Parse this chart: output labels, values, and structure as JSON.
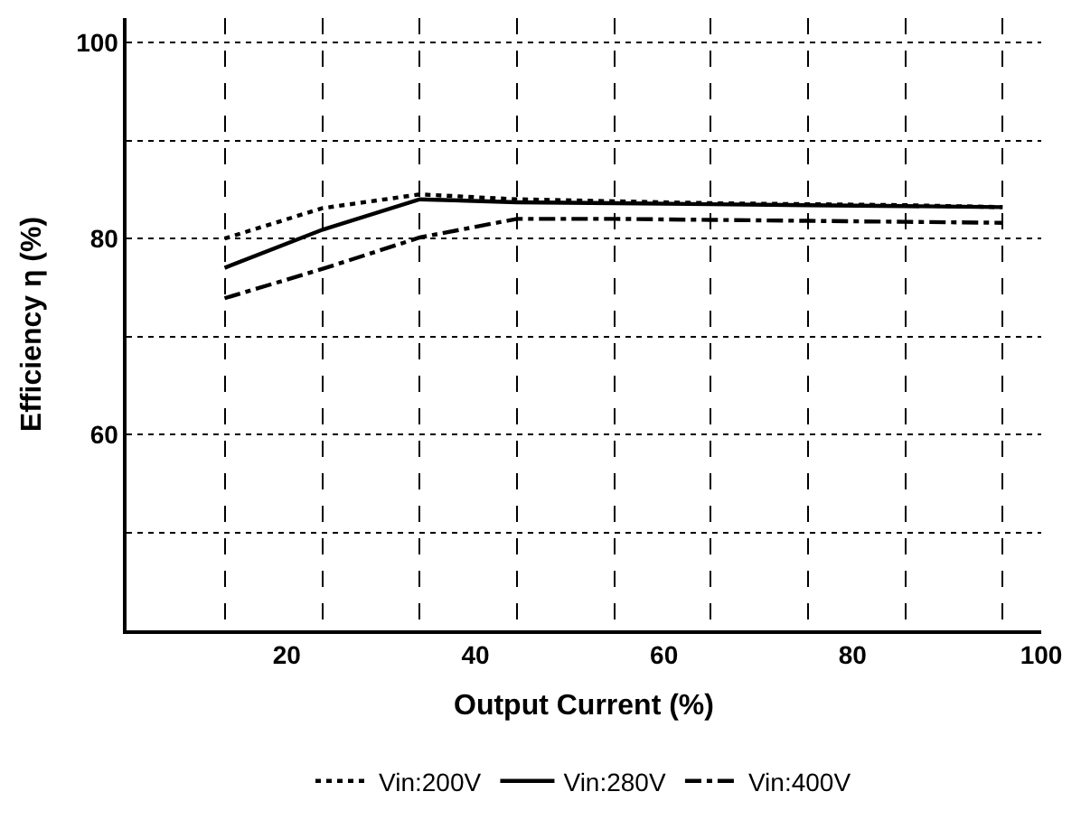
{
  "chart_data": {
    "type": "line",
    "xlabel": "Output Current (%)",
    "ylabel": "Efficiency η (%)",
    "x": [
      13.4,
      23.8,
      34.1,
      44.4,
      54.8,
      64.9,
      75.3,
      85.6,
      95.9
    ],
    "series": [
      {
        "name": "Vin:200V",
        "color": "#000000",
        "line_style": "dotted",
        "values": [
          80.0,
          83.1,
          84.5,
          84.0,
          83.8,
          83.6,
          83.5,
          83.4,
          83.2
        ]
      },
      {
        "name": "Vin:280V",
        "color": "#000000",
        "line_style": "solid",
        "values": [
          77.0,
          80.9,
          84.0,
          83.7,
          83.6,
          83.5,
          83.4,
          83.3,
          83.2
        ]
      },
      {
        "name": "Vin:400V",
        "color": "#000000",
        "line_style": "dashdot",
        "values": [
          73.9,
          76.9,
          80.1,
          82.0,
          82.0,
          81.9,
          81.8,
          81.7,
          81.6
        ]
      }
    ],
    "xlim": [
      3,
      100
    ],
    "ylim": [
      40,
      102.5
    ],
    "xticks": [
      20,
      40,
      60,
      80,
      100,
      {
        "value": 13.4,
        "label": null
      },
      {
        "value": 23.8,
        "label": null
      },
      {
        "value": 34.1,
        "label": null
      },
      {
        "value": 44.4,
        "label": null
      },
      {
        "value": 54.8,
        "label": null
      },
      {
        "value": 64.9,
        "label": null
      },
      {
        "value": 75.3,
        "label": null
      },
      {
        "value": 85.6,
        "label": null
      },
      {
        "value": 95.9,
        "label": null
      }
    ],
    "yticks": [
      60,
      80,
      100,
      {
        "value": 50,
        "label": null
      },
      {
        "value": 70,
        "label": null
      },
      {
        "value": 90,
        "label": null
      }
    ],
    "grid": true,
    "legend": "bottom",
    "marker": "none"
  }
}
